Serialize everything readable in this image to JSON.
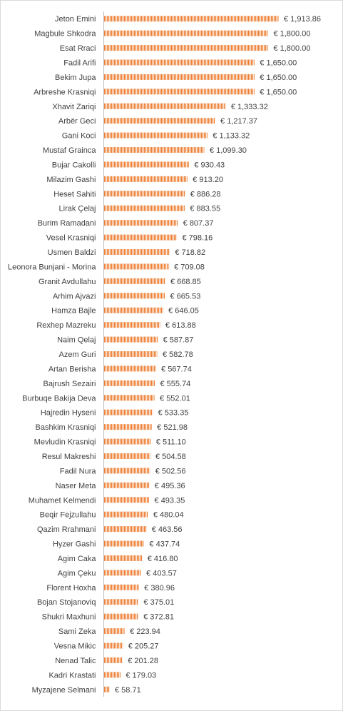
{
  "chart_data": {
    "type": "bar",
    "orientation": "horizontal",
    "title": "",
    "xlabel": "",
    "ylabel": "",
    "grid": false,
    "legend": "none",
    "bar_color": "#ED7D31",
    "bar_pattern": "vertical-stripes",
    "currency_symbol": "€",
    "xlim": [
      0,
      2000
    ],
    "categories": [
      "Jeton Emini",
      "Magbule Shkodra",
      "Esat Rraci",
      "Fadil Arifi",
      "Bekim Jupa",
      "Arbreshe Krasniqi",
      "Xhavit Zariqi",
      "Arbër Geci",
      "Gani Koci",
      "Mustaf Grainca",
      "Bujar Cakolli",
      "Milazim Gashi",
      "Heset Sahiti",
      "Lirak Çelaj",
      "Burim Ramadani",
      "Vesel Krasniqi",
      "Usmen Baldzi",
      "Leonora Bunjani - Morina",
      "Granit Avdullahu",
      "Arhim Ajvazi",
      "Hamza Bajle",
      "Rexhep Mazreku",
      "Naim Qelaj",
      "Azem Guri",
      "Artan Berisha",
      "Bajrush Sezairi",
      "Burbuqe Bakija Deva",
      "Hajredin Hyseni",
      "Bashkim Krasniqi",
      "Mevludin Krasniqi",
      "Resul Makreshi",
      "Fadil Nura",
      "Naser Meta",
      "Muhamet Kelmendi",
      "Beqir Fejzullahu",
      "Qazim Rrahmani",
      "Hyzer Gashi",
      "Agim Caka",
      "Agim Çeku",
      "Florent Hoxha",
      "Bojan Stojanoviq",
      "Shukri Maxhuni",
      "Sami Zeka",
      "Vesna Mikic",
      "Nenad Talic",
      "Kadri Krastati",
      "Myzajene Selmani"
    ],
    "values": [
      1913.86,
      1800.0,
      1800.0,
      1650.0,
      1650.0,
      1650.0,
      1333.32,
      1217.37,
      1133.32,
      1099.3,
      930.43,
      913.2,
      886.28,
      883.55,
      807.37,
      798.16,
      718.82,
      709.08,
      668.85,
      665.53,
      646.05,
      613.88,
      587.87,
      582.78,
      567.74,
      555.74,
      552.01,
      533.35,
      521.98,
      511.1,
      504.58,
      502.56,
      495.36,
      493.35,
      480.04,
      463.56,
      437.74,
      416.8,
      403.57,
      380.96,
      375.01,
      372.81,
      223.94,
      205.27,
      201.28,
      179.03,
      58.71
    ],
    "value_labels": [
      "€ 1,913.86",
      "€ 1,800.00",
      "€ 1,800.00",
      "€ 1,650.00",
      "€ 1,650.00",
      "€ 1,650.00",
      "€ 1,333.32",
      "€ 1,217.37",
      "€ 1,133.32",
      "€ 1,099.30",
      "€ 930.43",
      "€ 913.20",
      "€ 886.28",
      "€ 883.55",
      "€ 807.37",
      "€ 798.16",
      "€ 718.82",
      "€ 709.08",
      "€ 668.85",
      "€ 665.53",
      "€ 646.05",
      "€ 613.88",
      "€ 587.87",
      "€ 582.78",
      "€ 567.74",
      "€ 555.74",
      "€ 552.01",
      "€ 533.35",
      "€ 521.98",
      "€ 511.10",
      "€ 504.58",
      "€ 502.56",
      "€ 495.36",
      "€ 493.35",
      "€ 480.04",
      "€ 463.56",
      "€ 437.74",
      "€ 416.80",
      "€ 403.57",
      "€ 380.96",
      "€ 375.01",
      "€ 372.81",
      "€ 223.94",
      "€ 205.27",
      "€ 201.28",
      "€ 179.03",
      "€ 58.71"
    ]
  }
}
